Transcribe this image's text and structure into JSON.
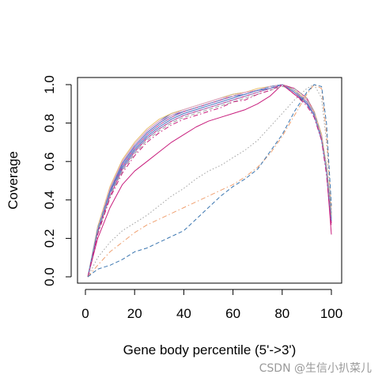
{
  "chart_data": {
    "type": "line",
    "title": "",
    "xlabel": "Gene body percentile (5'->3')",
    "ylabel": "Coverage",
    "xlim": [
      0,
      100
    ],
    "ylim": [
      0,
      1
    ],
    "x_ticks": [
      0,
      20,
      40,
      60,
      80,
      100
    ],
    "y_ticks": [
      0.0,
      0.2,
      0.4,
      0.6,
      0.8,
      1.0
    ],
    "x_tick_labels": [
      "0",
      "20",
      "40",
      "60",
      "80",
      "100"
    ],
    "y_tick_labels": [
      "0.0",
      "0.2",
      "0.4",
      "0.6",
      "0.8",
      "1.0"
    ],
    "x": [
      1,
      5,
      10,
      15,
      20,
      25,
      30,
      35,
      40,
      45,
      50,
      55,
      60,
      65,
      70,
      75,
      80,
      85,
      90,
      93,
      96,
      98,
      100
    ],
    "series": [
      {
        "style": "solid",
        "color": "#3b5bb5",
        "values": [
          0.0,
          0.26,
          0.46,
          0.6,
          0.69,
          0.76,
          0.81,
          0.85,
          0.87,
          0.89,
          0.91,
          0.93,
          0.95,
          0.96,
          0.97,
          0.99,
          1.0,
          0.97,
          0.92,
          0.86,
          0.73,
          0.58,
          0.33
        ]
      },
      {
        "style": "solid",
        "color": "#5566c0",
        "values": [
          0.0,
          0.25,
          0.45,
          0.59,
          0.68,
          0.75,
          0.8,
          0.84,
          0.86,
          0.88,
          0.9,
          0.92,
          0.94,
          0.95,
          0.97,
          0.98,
          1.0,
          0.96,
          0.91,
          0.85,
          0.72,
          0.56,
          0.31
        ]
      },
      {
        "style": "solid",
        "color": "#c81e7d",
        "values": [
          0.0,
          0.23,
          0.42,
          0.56,
          0.65,
          0.72,
          0.77,
          0.81,
          0.84,
          0.86,
          0.88,
          0.9,
          0.92,
          0.94,
          0.96,
          0.98,
          1.0,
          0.95,
          0.9,
          0.84,
          0.72,
          0.55,
          0.28
        ]
      },
      {
        "style": "solid",
        "color": "#c81e7d",
        "values": [
          0.0,
          0.2,
          0.36,
          0.48,
          0.55,
          0.6,
          0.65,
          0.7,
          0.74,
          0.78,
          0.81,
          0.83,
          0.85,
          0.87,
          0.9,
          0.94,
          1.0,
          0.98,
          0.93,
          0.86,
          0.74,
          0.55,
          0.22
        ]
      },
      {
        "style": "solid",
        "color": "#d23a8c",
        "values": [
          0.0,
          0.24,
          0.44,
          0.58,
          0.67,
          0.74,
          0.79,
          0.83,
          0.86,
          0.88,
          0.9,
          0.92,
          0.94,
          0.96,
          0.97,
          0.99,
          1.0,
          0.96,
          0.91,
          0.85,
          0.73,
          0.57,
          0.3
        ]
      },
      {
        "style": "solid",
        "color": "#e8c070",
        "values": [
          0.0,
          0.26,
          0.47,
          0.61,
          0.7,
          0.77,
          0.82,
          0.85,
          0.87,
          0.89,
          0.91,
          0.93,
          0.95,
          0.96,
          0.98,
          0.99,
          1.0,
          0.97,
          0.92,
          0.86,
          0.74,
          0.58,
          0.32
        ]
      },
      {
        "style": "solid",
        "color": "#e8a8c8",
        "values": [
          0.0,
          0.25,
          0.46,
          0.6,
          0.69,
          0.76,
          0.81,
          0.84,
          0.87,
          0.89,
          0.91,
          0.93,
          0.94,
          0.96,
          0.97,
          0.99,
          1.0,
          0.96,
          0.92,
          0.85,
          0.73,
          0.57,
          0.31
        ]
      },
      {
        "style": "solid",
        "color": "#4a6fbf",
        "values": [
          0.0,
          0.24,
          0.44,
          0.57,
          0.66,
          0.73,
          0.78,
          0.82,
          0.85,
          0.87,
          0.89,
          0.91,
          0.93,
          0.95,
          0.97,
          0.98,
          1.0,
          0.96,
          0.9,
          0.84,
          0.71,
          0.55,
          0.29
        ]
      },
      {
        "style": "dashed",
        "color": "#8f8fc8",
        "values": [
          0.0,
          0.24,
          0.43,
          0.56,
          0.65,
          0.72,
          0.77,
          0.81,
          0.84,
          0.86,
          0.88,
          0.9,
          0.92,
          0.94,
          0.96,
          0.98,
          1.0,
          0.97,
          0.91,
          0.85,
          0.72,
          0.56,
          0.3
        ]
      },
      {
        "style": "dashed",
        "color": "#a0a0a0",
        "values": [
          0.0,
          0.23,
          0.42,
          0.55,
          0.64,
          0.71,
          0.76,
          0.8,
          0.83,
          0.85,
          0.87,
          0.89,
          0.91,
          0.93,
          0.95,
          0.97,
          0.99,
          0.98,
          0.93,
          0.86,
          0.73,
          0.57,
          0.31
        ]
      },
      {
        "style": "dashed",
        "color": "#6c8fc8",
        "values": [
          0.0,
          0.25,
          0.45,
          0.58,
          0.67,
          0.74,
          0.79,
          0.83,
          0.86,
          0.88,
          0.9,
          0.92,
          0.94,
          0.95,
          0.97,
          0.99,
          1.0,
          0.96,
          0.91,
          0.84,
          0.71,
          0.55,
          0.3
        ]
      },
      {
        "style": "dashdot",
        "color": "#c81e7d",
        "values": [
          0.0,
          0.22,
          0.41,
          0.54,
          0.63,
          0.7,
          0.75,
          0.79,
          0.82,
          0.84,
          0.86,
          0.88,
          0.91,
          0.92,
          0.95,
          0.97,
          1.0,
          0.95,
          0.89,
          0.83,
          0.71,
          0.53,
          0.26
        ]
      },
      {
        "style": "dotted",
        "color": "#a0a0a0",
        "values": [
          0.0,
          0.1,
          0.18,
          0.24,
          0.28,
          0.32,
          0.37,
          0.42,
          0.46,
          0.51,
          0.55,
          0.58,
          0.62,
          0.66,
          0.71,
          0.78,
          0.85,
          0.92,
          0.98,
          1.0,
          0.93,
          0.7,
          0.35
        ]
      },
      {
        "style": "dashdot",
        "color": "#f0a070",
        "values": [
          0.0,
          0.06,
          0.13,
          0.18,
          0.23,
          0.27,
          0.3,
          0.33,
          0.36,
          0.39,
          0.42,
          0.45,
          0.48,
          0.52,
          0.57,
          0.64,
          0.73,
          0.84,
          0.95,
          1.0,
          0.98,
          0.75,
          0.35
        ]
      },
      {
        "style": "dashed",
        "color": "#3b76b0",
        "values": [
          0.0,
          0.04,
          0.06,
          0.09,
          0.13,
          0.15,
          0.18,
          0.21,
          0.24,
          0.3,
          0.36,
          0.42,
          0.47,
          0.51,
          0.56,
          0.65,
          0.74,
          0.86,
          0.96,
          1.0,
          0.99,
          0.8,
          0.37
        ]
      }
    ]
  },
  "watermark": "CSDN @生信小扒菜儿"
}
